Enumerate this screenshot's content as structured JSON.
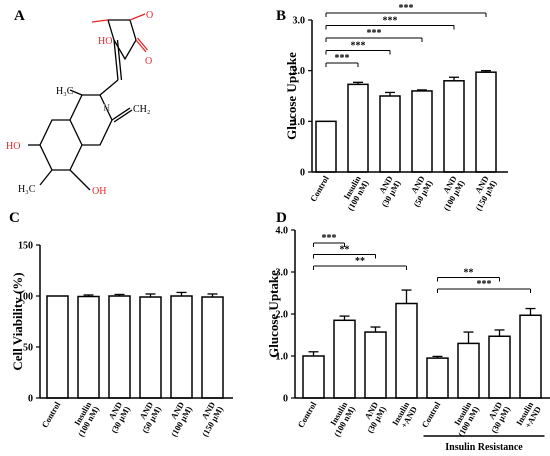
{
  "panels": {
    "a": {
      "letter": "A"
    },
    "b": {
      "letter": "B"
    },
    "c": {
      "letter": "C"
    },
    "d": {
      "letter": "D"
    }
  },
  "structure": {
    "labels": {
      "ho_top": "HO",
      "carbonyl_o": "O",
      "ring_o": "O",
      "ch3_upper": "H₃C",
      "h_bridge": "H",
      "ch2": "CH₂",
      "ho_left": "HO",
      "ch3_lower": "H₃C",
      "oh": "OH"
    },
    "colors": {
      "hetero": "#e8262c",
      "bond": "#000000",
      "hydrogen": "#888888"
    }
  },
  "chart_data": [
    {
      "panel": "B",
      "type": "bar",
      "ylabel": "Glucose Uptake",
      "ylim": [
        0,
        3.0
      ],
      "yticks": [
        "0",
        "1.0",
        "2.0",
        "3.0"
      ],
      "categories": [
        [
          "Control"
        ],
        [
          "Insulin",
          "(100 nM)"
        ],
        [
          "AND",
          "(30 μM)"
        ],
        [
          "AND",
          "(50 μM)"
        ],
        [
          "AND",
          "(100 μM)"
        ],
        [
          "AND",
          "(150 μM)"
        ]
      ],
      "values": [
        1.0,
        1.73,
        1.5,
        1.6,
        1.8,
        1.97
      ],
      "errors": [
        0,
        0.04,
        0.07,
        0.02,
        0.07,
        0.03
      ],
      "significance": [
        {
          "from": 0,
          "to": 1,
          "label": "***"
        },
        {
          "from": 0,
          "to": 2,
          "label": "***"
        },
        {
          "from": 0,
          "to": 3,
          "label": "***"
        },
        {
          "from": 0,
          "to": 4,
          "label": "***"
        },
        {
          "from": 0,
          "to": 5,
          "label": "***"
        }
      ],
      "groups": []
    },
    {
      "panel": "C",
      "type": "bar",
      "ylabel": "Cell Viability (%)",
      "ylim": [
        0,
        150
      ],
      "yticks": [
        "0",
        "50",
        "100",
        "150"
      ],
      "categories": [
        [
          "Control"
        ],
        [
          "Insulin",
          "(100 nM)"
        ],
        [
          "AND",
          "(30 μM)"
        ],
        [
          "AND",
          "(50 μM)"
        ],
        [
          "AND",
          "(100 μM)"
        ],
        [
          "AND",
          "(150 μM)"
        ]
      ],
      "values": [
        100,
        99.5,
        100,
        99,
        100,
        99
      ],
      "errors": [
        0,
        1.5,
        1.5,
        3,
        3.5,
        3
      ],
      "significance": [],
      "groups": []
    },
    {
      "panel": "D",
      "type": "bar",
      "ylabel": "Glucose Uptake",
      "ylim": [
        0,
        4.0
      ],
      "yticks": [
        "0",
        "1.0",
        "2.0",
        "3.0",
        "4.0"
      ],
      "categories": [
        [
          "Control"
        ],
        [
          "Insulin",
          "(100 nM)"
        ],
        [
          "AND",
          "(30 μM)"
        ],
        [
          "Insulin",
          "+AND"
        ],
        [
          "Control"
        ],
        [
          "Insulin",
          "(100 nM)"
        ],
        [
          "AND",
          "(30 μM)"
        ],
        [
          "Insulin",
          "+AND"
        ]
      ],
      "values": [
        1.0,
        1.85,
        1.57,
        2.25,
        0.95,
        1.3,
        1.47,
        1.97
      ],
      "errors": [
        0.1,
        0.1,
        0.12,
        0.32,
        0.04,
        0.27,
        0.15,
        0.16
      ],
      "significance": [
        {
          "from": 0,
          "to": 1,
          "label": "***"
        },
        {
          "from": 0,
          "to": 2,
          "label": "**"
        },
        {
          "from": 0,
          "to": 3,
          "label": "**"
        },
        {
          "from": 4,
          "to": 6,
          "label": "**"
        },
        {
          "from": 4,
          "to": 7,
          "label": "***"
        }
      ],
      "groups": [
        {
          "from": 4,
          "to": 7,
          "label": "Insulin Resistance"
        }
      ]
    }
  ]
}
